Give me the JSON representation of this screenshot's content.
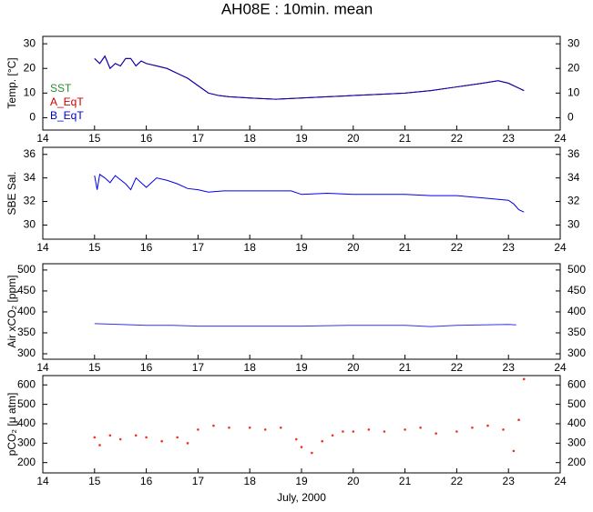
{
  "title": "AH08E : 10min. mean",
  "chart_data": [
    {
      "type": "line",
      "ylabel": "Temp. [°C]",
      "legend": "upper left",
      "x": [
        15.0,
        15.1,
        15.2,
        15.3,
        15.4,
        15.5,
        15.6,
        15.7,
        15.8,
        15.9,
        16.0,
        16.2,
        16.4,
        16.6,
        16.8,
        17.0,
        17.2,
        17.4,
        17.6,
        18.0,
        18.5,
        19.0,
        19.5,
        20.0,
        20.5,
        21.0,
        21.5,
        22.0,
        22.5,
        22.8,
        23.0,
        23.2,
        23.3
      ],
      "series": [
        {
          "name": "SST",
          "color": "#2e8b2e",
          "values": [
            24,
            22,
            25,
            20,
            22,
            21,
            24,
            24,
            21,
            23,
            22,
            21,
            20,
            18,
            16,
            13,
            10,
            9,
            8.5,
            8,
            7.5,
            8,
            8.5,
            9,
            9.5,
            10,
            11,
            12.5,
            14,
            15,
            14,
            12,
            11
          ]
        },
        {
          "name": "A_EqT",
          "color": "#cc0000",
          "values": [
            24,
            22,
            25,
            20,
            22,
            21,
            24,
            24,
            21,
            23,
            22,
            21,
            20,
            18,
            16,
            13,
            10,
            9,
            8.5,
            8,
            7.5,
            8,
            8.5,
            9,
            9.5,
            10,
            11,
            12.5,
            14,
            15,
            14,
            12,
            11
          ]
        },
        {
          "name": "B_EqT",
          "color": "#0000cc",
          "values": [
            24,
            22,
            25,
            20,
            22,
            21,
            24,
            24,
            21,
            23,
            22,
            21,
            20,
            18,
            16,
            13,
            10,
            9,
            8.5,
            8,
            7.5,
            8,
            8.5,
            9,
            9.5,
            10,
            11,
            12.5,
            14,
            15,
            14,
            12,
            11
          ]
        }
      ],
      "xlim": [
        14,
        24
      ],
      "xticks": [
        14,
        15,
        16,
        17,
        18,
        19,
        20,
        21,
        22,
        23,
        24
      ],
      "ylim": [
        -5,
        33
      ],
      "yticks": [
        0,
        10,
        20,
        30
      ]
    },
    {
      "type": "line",
      "ylabel": "SBE Sal.",
      "color": "#0000ee",
      "x": [
        15.0,
        15.05,
        15.1,
        15.2,
        15.3,
        15.4,
        15.6,
        15.7,
        15.8,
        16.0,
        16.2,
        16.4,
        16.6,
        16.8,
        17.0,
        17.2,
        17.5,
        18.0,
        18.5,
        18.8,
        19.0,
        19.5,
        20.0,
        20.5,
        21.0,
        21.5,
        22.0,
        22.5,
        23.0,
        23.1,
        23.2,
        23.3
      ],
      "values": [
        34.2,
        33,
        34.3,
        34,
        33.6,
        34.2,
        33.5,
        33,
        34,
        33.2,
        34,
        33.8,
        33.5,
        33.1,
        33,
        32.8,
        32.9,
        32.9,
        32.9,
        32.9,
        32.6,
        32.7,
        32.6,
        32.6,
        32.6,
        32.5,
        32.5,
        32.3,
        32.1,
        31.8,
        31.3,
        31.1
      ],
      "xlim": [
        14,
        24
      ],
      "xticks": [
        14,
        15,
        16,
        17,
        18,
        19,
        20,
        21,
        22,
        23,
        24
      ],
      "ylim": [
        28.8,
        36.6
      ],
      "yticks": [
        30,
        32,
        34,
        36
      ]
    },
    {
      "type": "line",
      "ylabel": "Air xCO₂ [ppm]",
      "color": "#3333ee",
      "x": [
        15.0,
        15.5,
        16.0,
        16.5,
        17.0,
        18.0,
        19.0,
        20.0,
        21.0,
        21.5,
        22.0,
        23.0,
        23.15
      ],
      "values": [
        372,
        370,
        368,
        368,
        366,
        366,
        366,
        368,
        368,
        365,
        368,
        370,
        369
      ],
      "xlim": [
        14,
        24
      ],
      "xticks": [
        14,
        15,
        16,
        17,
        18,
        19,
        20,
        21,
        22,
        23,
        24
      ],
      "ylim": [
        287,
        515
      ],
      "yticks": [
        300,
        350,
        400,
        450,
        500
      ]
    },
    {
      "type": "scatter",
      "ylabel": "pCO₂ [μ atm]",
      "xlabel": "July, 2000",
      "color": "#ee3322",
      "x": [
        15.0,
        15.1,
        15.3,
        15.5,
        15.8,
        16.0,
        16.3,
        16.6,
        16.8,
        17.0,
        17.3,
        17.6,
        18.0,
        18.3,
        18.6,
        18.9,
        19.0,
        19.2,
        19.4,
        19.6,
        19.8,
        20.0,
        20.3,
        20.6,
        21.0,
        21.3,
        21.6,
        22.0,
        22.3,
        22.6,
        22.9,
        23.1,
        23.2,
        23.3
      ],
      "values": [
        330,
        290,
        340,
        320,
        340,
        330,
        310,
        330,
        300,
        370,
        390,
        380,
        380,
        370,
        380,
        320,
        280,
        250,
        310,
        340,
        360,
        360,
        370,
        360,
        370,
        380,
        350,
        360,
        380,
        390,
        370,
        260,
        420,
        630
      ],
      "xlim": [
        14,
        24
      ],
      "xticks": [
        14,
        15,
        16,
        17,
        18,
        19,
        20,
        21,
        22,
        23,
        24
      ],
      "ylim": [
        147,
        648
      ],
      "yticks": [
        200,
        300,
        400,
        500,
        600
      ]
    }
  ]
}
